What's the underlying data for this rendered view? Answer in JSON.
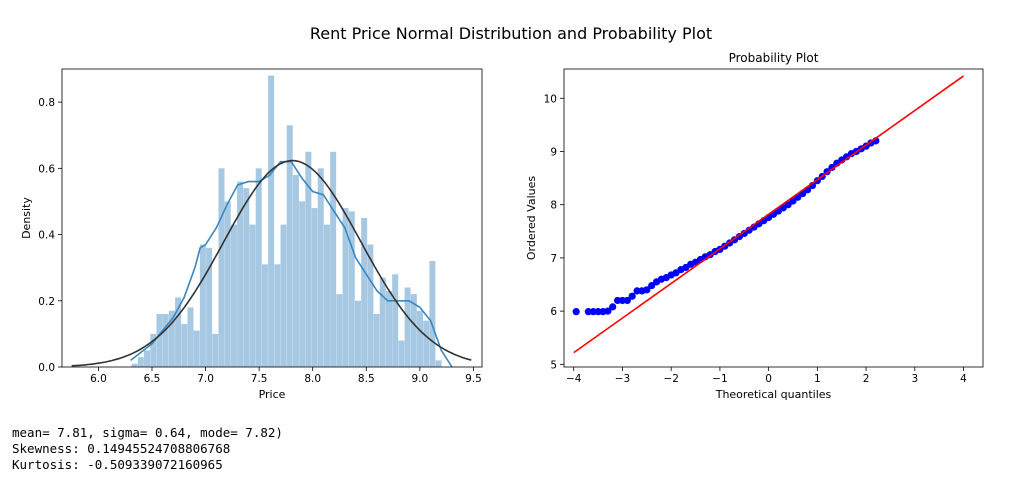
{
  "suptitle": "Rent Price Normal Distribution and Probability Plot",
  "colors": {
    "hist": "#a6c8e2",
    "kde": "#3a87c0",
    "normal_fit": "#333333",
    "points": "#0000ff",
    "fit_line": "#ff0000"
  },
  "chart_data": [
    {
      "type": "bar",
      "subtype": "histogram with KDE and fitted normal curve",
      "title": "",
      "xlabel": "Price",
      "ylabel": "Density",
      "xlim": [
        5.66,
        9.58
      ],
      "ylim": [
        0,
        0.9
      ],
      "xticks": [
        "6.0",
        "6.5",
        "7.0",
        "7.5",
        "8.0",
        "8.5",
        "9.0",
        "9.5"
      ],
      "yticks": [
        "0.0",
        "0.2",
        "0.4",
        "0.6",
        "0.8"
      ],
      "bin_start": 6.31,
      "bin_width": 0.0579,
      "values": [
        0.01,
        0.03,
        0.05,
        0.1,
        0.16,
        0.16,
        0.17,
        0.21,
        0.13,
        0.18,
        0.11,
        0.37,
        0.36,
        0.1,
        0.6,
        0.5,
        0.43,
        0.56,
        0.54,
        0.43,
        0.6,
        0.31,
        0.88,
        0.31,
        0.43,
        0.73,
        0.58,
        0.5,
        0.65,
        0.48,
        0.6,
        0.43,
        0.65,
        0.22,
        0.48,
        0.47,
        0.2,
        0.45,
        0.37,
        0.16,
        0.27,
        0.23,
        0.28,
        0.08,
        0.24,
        0.22,
        0.17,
        0.14,
        0.32,
        0.02
      ],
      "series": [
        {
          "name": "",
          "kind": "kde",
          "x": [
            6.3,
            6.5,
            6.7,
            6.8,
            6.9,
            6.95,
            7.0,
            7.1,
            7.2,
            7.3,
            7.4,
            7.5,
            7.6,
            7.65,
            7.7,
            7.8,
            7.9,
            8.0,
            8.1,
            8.2,
            8.3,
            8.4,
            8.5,
            8.6,
            8.7,
            8.8,
            8.9,
            9.0,
            9.1,
            9.2,
            9.3
          ],
          "y": [
            0.02,
            0.07,
            0.15,
            0.21,
            0.3,
            0.36,
            0.37,
            0.42,
            0.49,
            0.55,
            0.56,
            0.56,
            0.58,
            0.6,
            0.62,
            0.62,
            0.57,
            0.53,
            0.52,
            0.47,
            0.42,
            0.33,
            0.28,
            0.23,
            0.2,
            0.2,
            0.2,
            0.18,
            0.14,
            0.05,
            0.0
          ]
        },
        {
          "name": "",
          "kind": "normal_fit",
          "mu": 7.81,
          "sigma": 0.64,
          "x_range": [
            5.75,
            9.48
          ]
        }
      ]
    },
    {
      "type": "scatter",
      "title": "Probability Plot",
      "xlabel": "Theoretical quantiles",
      "ylabel": "Ordered Values",
      "xlim": [
        -4.2,
        4.4
      ],
      "ylim": [
        4.95,
        10.55
      ],
      "xticks": [
        "−4",
        "−3",
        "−2",
        "−1",
        "0",
        "1",
        "2",
        "3",
        "4"
      ],
      "yticks": [
        "5",
        "6",
        "7",
        "8",
        "9",
        "10"
      ],
      "series": [
        {
          "name": "",
          "kind": "points",
          "x": [
            -3.95,
            -3.7,
            -3.6,
            -3.5,
            -3.4,
            -3.3,
            -3.2,
            -3.1,
            -3.0,
            -2.9,
            -2.8,
            -2.7,
            -2.6,
            -2.5,
            -2.4,
            -2.3,
            -2.2,
            -2.1,
            -2.0,
            -1.9,
            -1.8,
            -1.7,
            -1.6,
            -1.5,
            -1.4,
            -1.3,
            -1.2,
            -1.1,
            -1.0,
            -0.9,
            -0.8,
            -0.7,
            -0.6,
            -0.5,
            -0.4,
            -0.3,
            -0.2,
            -0.1,
            0.0,
            0.1,
            0.2,
            0.3,
            0.4,
            0.5,
            0.6,
            0.7,
            0.8,
            0.9,
            1.0,
            1.1,
            1.2,
            1.3,
            1.4,
            1.5,
            1.6,
            1.7,
            1.8,
            1.9,
            2.0,
            2.1,
            2.2
          ],
          "y": [
            5.99,
            5.99,
            5.99,
            5.99,
            5.99,
            6.0,
            6.08,
            6.2,
            6.2,
            6.2,
            6.28,
            6.38,
            6.38,
            6.4,
            6.48,
            6.55,
            6.6,
            6.63,
            6.68,
            6.72,
            6.78,
            6.82,
            6.88,
            6.92,
            6.97,
            7.02,
            7.06,
            7.12,
            7.16,
            7.22,
            7.28,
            7.34,
            7.4,
            7.46,
            7.52,
            7.58,
            7.64,
            7.7,
            7.76,
            7.82,
            7.88,
            7.94,
            8.0,
            8.07,
            8.14,
            8.21,
            8.28,
            8.36,
            8.45,
            8.53,
            8.62,
            8.7,
            8.78,
            8.84,
            8.9,
            8.96,
            9.0,
            9.05,
            9.1,
            9.16,
            9.2
          ]
        },
        {
          "name": "",
          "kind": "fit_line",
          "x": [
            -4.0,
            4.0
          ],
          "y": [
            5.22,
            10.42
          ]
        }
      ]
    }
  ],
  "console": {
    "line1": "mean= 7.81, sigma= 0.64, mode= 7.82)",
    "line2": "Skewness: 0.14945524708806768",
    "line3": "Kurtosis: -0.509339072160965"
  }
}
